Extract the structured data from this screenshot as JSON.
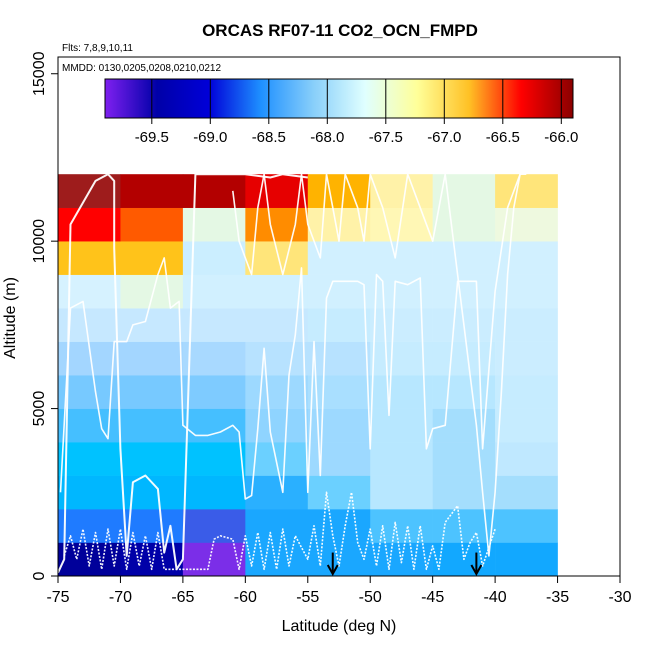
{
  "chart_data": {
    "type": "heatmap",
    "title": "ORCAS RF07-11 CO2_OCN_FMPD",
    "subtitle_flights": "Flts: 7,8,9,10,11",
    "subtitle_dates": "MMDD: 0130,0205,0208,0210,0212",
    "xlabel": "Latitude (deg N)",
    "ylabel": "Altitude (m)",
    "xlim": [
      -75,
      -30
    ],
    "ylim": [
      0,
      15500
    ],
    "x_ticks": [
      -75,
      -70,
      -65,
      -60,
      -55,
      -50,
      -45,
      -40,
      -35,
      -30
    ],
    "x_tick_labels": [
      "-75",
      "-70",
      "-65",
      "-60",
      "-55",
      "-50",
      "-45",
      "-40",
      "-35",
      "-30"
    ],
    "y_ticks": [
      0,
      5000,
      10000,
      15000
    ],
    "y_tick_labels": [
      "0",
      "5000",
      "10000",
      "15000"
    ],
    "colorbar": {
      "range": [
        -69.9,
        -65.9
      ],
      "ticks": [
        -69.5,
        -69.0,
        -68.5,
        -68.0,
        -67.5,
        -67.0,
        -66.5,
        -66.0
      ],
      "tick_labels": [
        "-69.5",
        "-69.0",
        "-68.5",
        "-68.0",
        "-67.5",
        "-67.0",
        "-66.5",
        "-66.0"
      ],
      "stops": [
        "#7f20f0",
        "#0000a8",
        "#0000d8",
        "#1e90ff",
        "#87cefa",
        "#e0ffff",
        "#ffff99",
        "#ffc125",
        "#ff0000",
        "#8b0000"
      ]
    },
    "lat_bins": [
      -75,
      -70,
      -65,
      -60,
      -55,
      -50,
      -45,
      -40,
      -35
    ],
    "alt_bins": [
      0,
      1000,
      2000,
      3000,
      4000,
      5000,
      6000,
      7000,
      8000,
      9000,
      10000,
      11000,
      12000
    ],
    "cell_colors": [
      [
        "#00009a",
        "#0000a8",
        "#7b2ee8",
        "#1aa7ff",
        "#1aa7ff",
        "#1aa7ff",
        "#12a8ff",
        "#12a8ff"
      ],
      [
        "#1f7bff",
        "#1f7bff",
        "#3a5ce8",
        "#1aa7ff",
        "#1aa7ff",
        "#4dc3ff",
        "#4dc3ff",
        "#4dc3ff"
      ],
      [
        "#00b7ff",
        "#00b7ff",
        "#00b7ff",
        "#2ab0ff",
        "#6bd0ff",
        "#b7e7ff",
        "#a4defd",
        "#a4defd"
      ],
      [
        "#00c2ff",
        "#00c2ff",
        "#00c2ff",
        "#6bd0ff",
        "#9dd9ff",
        "#b7e7ff",
        "#a4defd",
        "#bfe8ff"
      ],
      [
        "#45bfff",
        "#45bfff",
        "#45bfff",
        "#8fd4ff",
        "#9dd9ff",
        "#b7e7ff",
        "#a4defd",
        "#c6ecff"
      ],
      [
        "#77c9ff",
        "#77c9ff",
        "#7ecbff",
        "#9dd9ff",
        "#a9dfff",
        "#b7e7ff",
        "#b7e7ff",
        "#c6ecff"
      ],
      [
        "#a3d6ff",
        "#a3d6ff",
        "#a8d9ff",
        "#b7e2ff",
        "#b7e2ff",
        "#c6ecff",
        "#c6ecff",
        "#cbedff"
      ],
      [
        "#c6e8ff",
        "#c6e8ff",
        "#c6e8ff",
        "#c6e8ff",
        "#c6ecff",
        "#cbedff",
        "#cbedff",
        "#cbedff"
      ],
      [
        "#d6f2ff",
        "#e4f8e4",
        "#d1f0ff",
        "#d1f0ff",
        "#d1f0ff",
        "#d1f0ff",
        "#d1f0ff",
        "#d1f0ff"
      ],
      [
        "#ffc31a",
        "#ffc31a",
        "#cbeeff",
        "#ffe57a",
        "#d1f0ff",
        "#d1f0ff",
        "#d1f0ff",
        "#d1f0ff"
      ],
      [
        "#ff0000",
        "#ff5a00",
        "#e4f8e4",
        "#ff8c00",
        "#fff2a8",
        "#fff7b5",
        "#e4f8e4",
        "#eef9df"
      ],
      [
        "#9e1c1c",
        "#b30000",
        "#b30000",
        "#e60000",
        "#ffb300",
        "#fff2a8",
        "#e4f8e4",
        "#ffe57a"
      ]
    ],
    "arrows_lat": [
      -53,
      -41.5
    ],
    "flight_tracks": [
      {
        "name": "track-1",
        "points": [
          [
            -75,
            100
          ],
          [
            -74.5,
            500
          ],
          [
            -74,
            10500
          ],
          [
            -72,
            11800
          ],
          [
            -71,
            12000
          ],
          [
            -70.5,
            11800
          ],
          [
            -70.5,
            9800
          ],
          [
            -70,
            3800
          ],
          [
            -69.5,
            600
          ],
          [
            -69,
            2800
          ],
          [
            -68,
            3000
          ],
          [
            -67,
            2600
          ],
          [
            -66.5,
            700
          ],
          [
            -66,
            1500
          ],
          [
            -65.5,
            200
          ],
          [
            -65,
            500
          ],
          [
            -64,
            12000
          ],
          [
            -63,
            12000
          ],
          [
            -60,
            12000
          ],
          [
            -58,
            11900
          ],
          [
            -57,
            12000
          ],
          [
            -55,
            11900
          ]
        ]
      },
      {
        "name": "track-2",
        "points": [
          [
            -74.8,
            2500
          ],
          [
            -74,
            8000
          ],
          [
            -73,
            8200
          ],
          [
            -72,
            5500
          ],
          [
            -71.5,
            4400
          ],
          [
            -71,
            4100
          ],
          [
            -70.5,
            7000
          ],
          [
            -70,
            7000
          ],
          [
            -69.5,
            7000
          ],
          [
            -69,
            7500
          ],
          [
            -68,
            7600
          ],
          [
            -67,
            9000
          ],
          [
            -66.5,
            9500
          ],
          [
            -66,
            8000
          ],
          [
            -65.3,
            8200
          ],
          [
            -65,
            4500
          ],
          [
            -64,
            4200
          ],
          [
            -63,
            4200
          ],
          [
            -62,
            4300
          ],
          [
            -61,
            4500
          ],
          [
            -60.5,
            4300
          ],
          [
            -60,
            2300
          ],
          [
            -59.5,
            2400
          ],
          [
            -59,
            4400
          ],
          [
            -58.5,
            6800
          ],
          [
            -58,
            4300
          ],
          [
            -57,
            2500
          ],
          [
            -56.5,
            6000
          ],
          [
            -56,
            7200
          ],
          [
            -55.5,
            9200
          ],
          [
            -55,
            2500
          ],
          [
            -54.5,
            7000
          ],
          [
            -54,
            3000
          ],
          [
            -53.5,
            8300
          ],
          [
            -53,
            8800
          ],
          [
            -52,
            8800
          ],
          [
            -51,
            8800
          ],
          [
            -50.5,
            8700
          ],
          [
            -50,
            3800
          ],
          [
            -49.5,
            9000
          ],
          [
            -49,
            8800
          ],
          [
            -48.5,
            4800
          ],
          [
            -48,
            8800
          ],
          [
            -47,
            8700
          ],
          [
            -46,
            8900
          ],
          [
            -45.5,
            3800
          ],
          [
            -45,
            4400
          ],
          [
            -44,
            4500
          ],
          [
            -43,
            8800
          ],
          [
            -42,
            8800
          ],
          [
            -41.5,
            8800
          ],
          [
            -41,
            3800
          ],
          [
            -40,
            8500
          ],
          [
            -39,
            11000
          ],
          [
            -38,
            12000
          ],
          [
            -37.5,
            12000
          ]
        ]
      },
      {
        "name": "track-3",
        "points": [
          [
            -74.5,
            600
          ],
          [
            -74,
            1200
          ],
          [
            -73.5,
            500
          ],
          [
            -73,
            1400
          ],
          [
            -72.5,
            300
          ],
          [
            -72,
            1300
          ],
          [
            -71.5,
            200
          ],
          [
            -71,
            1400
          ],
          [
            -70.5,
            300
          ],
          [
            -70,
            1400
          ],
          [
            -69.5,
            200
          ],
          [
            -69,
            1300
          ],
          [
            -68.5,
            300
          ],
          [
            -68,
            1200
          ],
          [
            -67.5,
            200
          ],
          [
            -67,
            1300
          ],
          [
            -66.5,
            200
          ],
          [
            -63,
            200
          ],
          [
            -62.5,
            1100
          ],
          [
            -62,
            1200
          ],
          [
            -61,
            1100
          ],
          [
            -60.5,
            200
          ],
          [
            -60,
            1200
          ],
          [
            -59.5,
            300
          ],
          [
            -59,
            1300
          ],
          [
            -58.5,
            200
          ],
          [
            -58,
            1300
          ],
          [
            -57.5,
            200
          ],
          [
            -57,
            1400
          ],
          [
            -56.5,
            300
          ],
          [
            -56,
            1200
          ],
          [
            -55,
            500
          ],
          [
            -54.5,
            1500
          ],
          [
            -54,
            300
          ],
          [
            -53.5,
            2500
          ],
          [
            -53,
            1200
          ],
          [
            -52.5,
            300
          ],
          [
            -52,
            1500
          ],
          [
            -51.5,
            2500
          ],
          [
            -51,
            1000
          ],
          [
            -50.5,
            500
          ],
          [
            -50,
            1400
          ],
          [
            -49.5,
            300
          ],
          [
            -49,
            1500
          ],
          [
            -48.5,
            200
          ],
          [
            -48,
            1600
          ],
          [
            -47.5,
            400
          ],
          [
            -47,
            1500
          ],
          [
            -46.5,
            200
          ],
          [
            -46,
            1500
          ],
          [
            -45.5,
            200
          ],
          [
            -45,
            900
          ],
          [
            -44.5,
            200
          ],
          [
            -44,
            1600
          ],
          [
            -43,
            2100
          ],
          [
            -42.5,
            500
          ],
          [
            -42,
            1000
          ],
          [
            -41.5,
            1300
          ],
          [
            -41,
            300
          ],
          [
            -40,
            1400
          ]
        ]
      },
      {
        "name": "track-4",
        "points": [
          [
            -61,
            11500
          ],
          [
            -60.5,
            10000
          ],
          [
            -60,
            9500
          ],
          [
            -59.5,
            9000
          ],
          [
            -59,
            11000
          ],
          [
            -58.5,
            12000
          ],
          [
            -58,
            10500
          ],
          [
            -57,
            9000
          ],
          [
            -56,
            10500
          ],
          [
            -55.5,
            12000
          ],
          [
            -55,
            10500
          ],
          [
            -54,
            9500
          ],
          [
            -53.5,
            12000
          ],
          [
            -53,
            11000
          ],
          [
            -52.5,
            10000
          ],
          [
            -52,
            12000
          ],
          [
            -51,
            11000
          ],
          [
            -50.5,
            10000
          ],
          [
            -50,
            12000
          ],
          [
            -49,
            11000
          ],
          [
            -48,
            9500
          ],
          [
            -47,
            12000
          ],
          [
            -46,
            11000
          ],
          [
            -45,
            10000
          ],
          [
            -44,
            12000
          ],
          [
            -43.5,
            10500
          ],
          [
            -43,
            9000
          ],
          [
            -42.5,
            7500
          ],
          [
            -42,
            6000
          ],
          [
            -41.5,
            4500
          ],
          [
            -41,
            2500
          ],
          [
            -40.5,
            600
          ],
          [
            -40,
            2500
          ],
          [
            -39.5,
            5500
          ],
          [
            -39,
            9000
          ],
          [
            -38.5,
            11000
          ],
          [
            -38,
            12000
          ]
        ]
      }
    ]
  }
}
